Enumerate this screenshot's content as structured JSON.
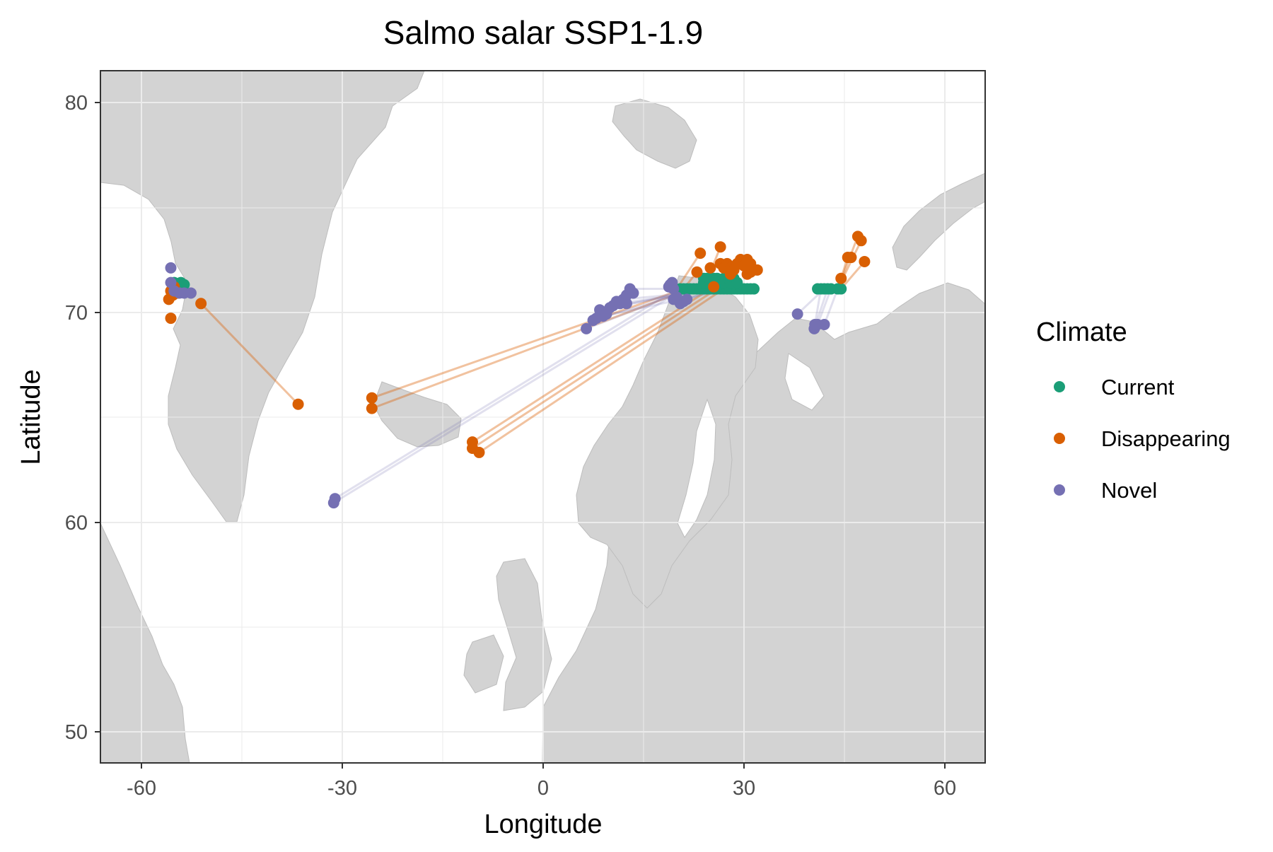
{
  "chart_data": {
    "type": "scatter",
    "title": "Salmo salar SSP1-1.9",
    "xlabel": "Longitude",
    "ylabel": "Latitude",
    "xlim": [
      -66,
      66
    ],
    "ylim": [
      48.5,
      81.5
    ],
    "x_ticks": [
      -60,
      -30,
      0,
      30,
      60
    ],
    "x_tick_labels": [
      "-60",
      "-30",
      "0",
      "30",
      "60"
    ],
    "y_ticks": [
      50,
      60,
      70,
      80
    ],
    "y_tick_labels": [
      "50",
      "60",
      "70",
      "80"
    ],
    "grid": true,
    "legend": {
      "title": "Climate",
      "position": "right",
      "entries": [
        {
          "label": "Current",
          "color": "#1b9e77"
        },
        {
          "label": "Disappearing",
          "color": "#d95f02"
        },
        {
          "label": "Novel",
          "color": "#7570b3"
        }
      ]
    },
    "series": [
      {
        "name": "Current",
        "color": "#1b9e77",
        "points": [
          [
            -55,
            71.4
          ],
          [
            -54,
            71.4
          ],
          [
            -53.5,
            71.3
          ],
          [
            20.5,
            71.1
          ],
          [
            21,
            71.1
          ],
          [
            21.5,
            71.1
          ],
          [
            22,
            71.1
          ],
          [
            22.5,
            71.1
          ],
          [
            23,
            71.1
          ],
          [
            23.5,
            71.1
          ],
          [
            24,
            71.1
          ],
          [
            24.5,
            71.1
          ],
          [
            25,
            71.1
          ],
          [
            25.5,
            71.1
          ],
          [
            26,
            71.1
          ],
          [
            26.5,
            71.1
          ],
          [
            27,
            71.1
          ],
          [
            27.5,
            71.1
          ],
          [
            28,
            71.1
          ],
          [
            28.5,
            71.1
          ],
          [
            29,
            71.1
          ],
          [
            29.5,
            71.1
          ],
          [
            30,
            71.1
          ],
          [
            30.5,
            71.1
          ],
          [
            31,
            71.1
          ],
          [
            31.5,
            71.1
          ],
          [
            24,
            71.6
          ],
          [
            24.5,
            71.6
          ],
          [
            25,
            71.6
          ],
          [
            25.5,
            71.6
          ],
          [
            26,
            71.6
          ],
          [
            27,
            71.6
          ],
          [
            27.5,
            71.6
          ],
          [
            28,
            71.6
          ],
          [
            28.5,
            71.6
          ],
          [
            24,
            71.4
          ],
          [
            25,
            71.4
          ],
          [
            26,
            71.4
          ],
          [
            27,
            71.4
          ],
          [
            28,
            71.4
          ],
          [
            29,
            71.4
          ],
          [
            41,
            71.1
          ],
          [
            41.5,
            71.1
          ],
          [
            42,
            71.1
          ],
          [
            42.5,
            71.1
          ],
          [
            43,
            71.1
          ],
          [
            44,
            71.1
          ],
          [
            44.5,
            71.1
          ]
        ]
      },
      {
        "name": "Disappearing",
        "color": "#d95f02",
        "points": [
          [
            -55.5,
            71.0
          ],
          [
            -55,
            71.2
          ],
          [
            -54.5,
            70.9
          ],
          [
            -55.8,
            70.6
          ],
          [
            -55.2,
            70.8
          ],
          [
            -55.5,
            69.7
          ],
          [
            -51,
            70.4
          ],
          [
            -36.5,
            65.6
          ],
          [
            -25.5,
            65.9
          ],
          [
            -25.5,
            65.4
          ],
          [
            -10.5,
            63.8
          ],
          [
            -10.5,
            63.5
          ],
          [
            -9.5,
            63.3
          ],
          [
            23.5,
            72.8
          ],
          [
            26.5,
            73.1
          ],
          [
            23,
            71.9
          ],
          [
            25,
            72.1
          ],
          [
            25.5,
            71.2
          ],
          [
            26.5,
            72.3
          ],
          [
            27,
            72.1
          ],
          [
            27.5,
            72.3
          ],
          [
            28,
            72.1
          ],
          [
            28.5,
            72.0
          ],
          [
            29,
            72.3
          ],
          [
            29.5,
            72.5
          ],
          [
            30,
            72.2
          ],
          [
            30.5,
            72.5
          ],
          [
            31,
            72.3
          ],
          [
            31.5,
            72.0
          ],
          [
            32,
            72.0
          ],
          [
            30.5,
            71.8
          ],
          [
            31,
            71.9
          ],
          [
            28,
            71.8
          ],
          [
            44.5,
            71.6
          ],
          [
            45.5,
            72.6
          ],
          [
            46,
            72.6
          ],
          [
            47,
            73.6
          ],
          [
            47.5,
            73.4
          ],
          [
            48,
            72.4
          ]
        ]
      },
      {
        "name": "Novel",
        "color": "#7570b3",
        "points": [
          [
            -55.5,
            72.1
          ],
          [
            -55.5,
            71.4
          ],
          [
            -55,
            71.0
          ],
          [
            -54.2,
            70.9
          ],
          [
            -53.5,
            70.9
          ],
          [
            -52.5,
            70.9
          ],
          [
            -31,
            61.1
          ],
          [
            -31.2,
            60.9
          ],
          [
            6.5,
            69.2
          ],
          [
            7.5,
            69.6
          ],
          [
            8,
            69.7
          ],
          [
            8.5,
            70.1
          ],
          [
            9,
            69.8
          ],
          [
            9.5,
            69.9
          ],
          [
            10,
            70.2
          ],
          [
            10.5,
            70.3
          ],
          [
            11,
            70.5
          ],
          [
            11.5,
            70.4
          ],
          [
            12,
            70.6
          ],
          [
            12.5,
            70.8
          ],
          [
            13,
            71.1
          ],
          [
            13.5,
            70.9
          ],
          [
            12.5,
            70.4
          ],
          [
            19,
            71.3
          ],
          [
            19.5,
            71.1
          ],
          [
            19.3,
            71.4
          ],
          [
            20,
            70.7
          ],
          [
            20.5,
            70.4
          ],
          [
            21,
            70.5
          ],
          [
            21.5,
            70.6
          ],
          [
            19.5,
            70.6
          ],
          [
            18.8,
            71.2
          ],
          [
            38,
            69.9
          ],
          [
            40.5,
            69.2
          ],
          [
            41,
            69.4
          ],
          [
            42,
            69.4
          ],
          [
            40.6,
            69.4
          ]
        ]
      }
    ],
    "links": [
      {
        "series": "Disappearing",
        "from": [
          -51,
          70.4
        ],
        "to": [
          -36.5,
          65.6
        ]
      },
      {
        "series": "Disappearing",
        "from": [
          -25.5,
          65.9
        ],
        "to": [
          21,
          71.1
        ]
      },
      {
        "series": "Disappearing",
        "from": [
          -25.5,
          65.4
        ],
        "to": [
          22,
          71.1
        ]
      },
      {
        "series": "Disappearing",
        "from": [
          -10.5,
          63.8
        ],
        "to": [
          25,
          71.1
        ]
      },
      {
        "series": "Disappearing",
        "from": [
          -10.5,
          63.5
        ],
        "to": [
          26,
          71.1
        ]
      },
      {
        "series": "Disappearing",
        "from": [
          -9.5,
          63.3
        ],
        "to": [
          27,
          71.1
        ]
      },
      {
        "series": "Disappearing",
        "from": [
          20,
          71.1
        ],
        "to": [
          23.5,
          72.8
        ]
      },
      {
        "series": "Disappearing",
        "from": [
          21,
          71.1
        ],
        "to": [
          23,
          71.9
        ]
      },
      {
        "series": "Disappearing",
        "from": [
          24,
          71.1
        ],
        "to": [
          26.5,
          73.1
        ]
      },
      {
        "series": "Disappearing",
        "from": [
          44,
          71.1
        ],
        "to": [
          45.5,
          72.6
        ]
      },
      {
        "series": "Disappearing",
        "from": [
          44,
          71.1
        ],
        "to": [
          47,
          73.6
        ]
      },
      {
        "series": "Disappearing",
        "from": [
          44.5,
          71.1
        ],
        "to": [
          48,
          72.4
        ]
      },
      {
        "series": "Disappearing",
        "from": [
          44,
          71.1
        ],
        "to": [
          47.5,
          73.4
        ]
      },
      {
        "series": "Novel",
        "from": [
          -31,
          61.1
        ],
        "to": [
          20,
          71.1
        ]
      },
      {
        "series": "Novel",
        "from": [
          -31.2,
          60.9
        ],
        "to": [
          21,
          71.1
        ]
      },
      {
        "series": "Novel",
        "from": [
          6.5,
          69.2
        ],
        "to": [
          22,
          71.1
        ]
      },
      {
        "series": "Novel",
        "from": [
          7.5,
          69.6
        ],
        "to": [
          23,
          71.1
        ]
      },
      {
        "series": "Novel",
        "from": [
          8.5,
          70.1
        ],
        "to": [
          24,
          71.1
        ]
      },
      {
        "series": "Novel",
        "from": [
          10,
          70.2
        ],
        "to": [
          25,
          71.1
        ]
      },
      {
        "series": "Novel",
        "from": [
          11.5,
          70.4
        ],
        "to": [
          26,
          71.1
        ]
      },
      {
        "series": "Novel",
        "from": [
          13,
          71.1
        ],
        "to": [
          27,
          71.1
        ]
      },
      {
        "series": "Novel",
        "from": [
          9,
          69.8
        ],
        "to": [
          28,
          71.1
        ]
      },
      {
        "series": "Novel",
        "from": [
          12,
          70.6
        ],
        "to": [
          29,
          71.1
        ]
      },
      {
        "series": "Novel",
        "from": [
          19,
          71.3
        ],
        "to": [
          26,
          71.1
        ]
      },
      {
        "series": "Novel",
        "from": [
          20.5,
          70.4
        ],
        "to": [
          25,
          71.1
        ]
      },
      {
        "series": "Novel",
        "from": [
          38,
          69.9
        ],
        "to": [
          42,
          71.1
        ]
      },
      {
        "series": "Novel",
        "from": [
          40.5,
          69.2
        ],
        "to": [
          42.5,
          71.1
        ]
      },
      {
        "series": "Novel",
        "from": [
          41,
          69.4
        ],
        "to": [
          43,
          71.1
        ]
      },
      {
        "series": "Novel",
        "from": [
          42,
          69.4
        ],
        "to": [
          44,
          71.1
        ]
      },
      {
        "series": "Novel",
        "from": [
          40.6,
          69.4
        ],
        "to": [
          41.5,
          71.1
        ]
      }
    ]
  }
}
